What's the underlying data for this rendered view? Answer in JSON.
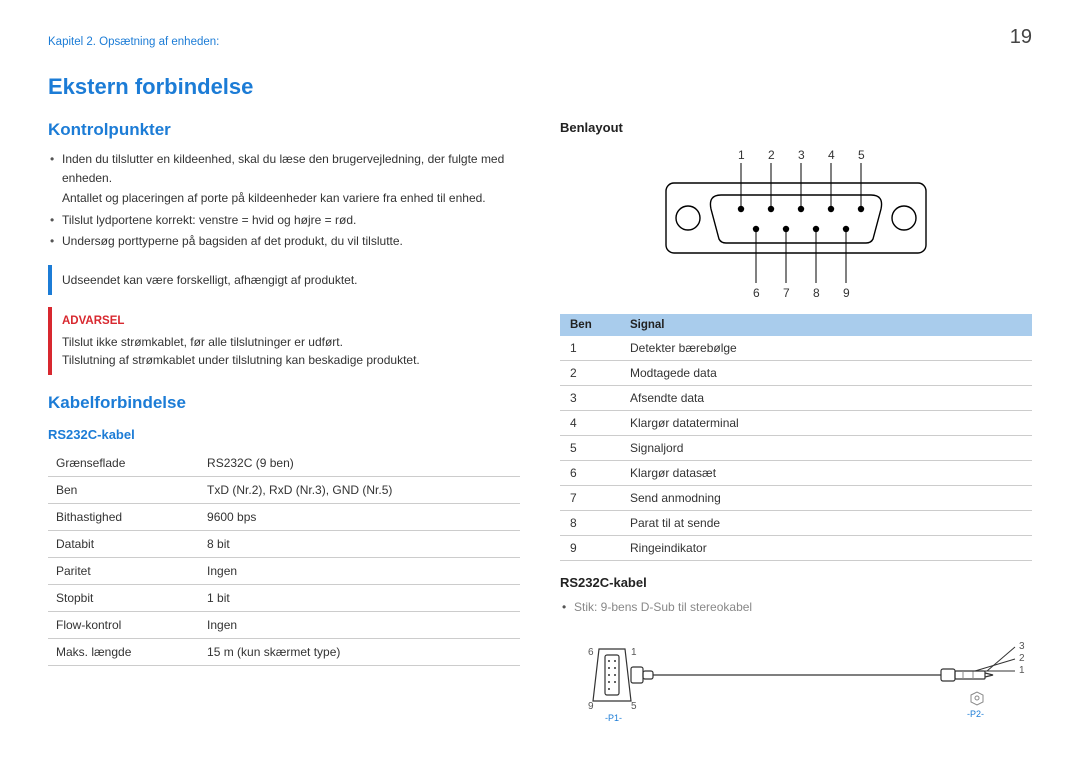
{
  "page_number": "19",
  "breadcrumb": "Kapitel 2. Opsætning af enheden:",
  "section_title": "Ekstern forbindelse",
  "kontrol": {
    "heading": "Kontrolpunkter",
    "bullets": [
      {
        "text": "Inden du tilslutter en kildeenhed, skal du læse den brugervejledning, der fulgte med enheden.",
        "sub": "Antallet og placeringen af porte på kildeenheder kan variere fra enhed til enhed."
      },
      {
        "text": "Tilslut lydportene korrekt: venstre = hvid og højre = rød."
      },
      {
        "text": "Undersøg porttyperne på bagsiden af det produkt, du vil tilslutte."
      }
    ],
    "note": "Udseendet kan være forskelligt, afhængigt af produktet.",
    "warn_label": "ADVARSEL",
    "warn_line1": "Tilslut ikke strømkablet, før alle tilslutninger er udført.",
    "warn_line2": "Tilslutning af strømkablet under tilslutning kan beskadige produktet."
  },
  "kabel": {
    "heading": "Kabelforbindelse",
    "sub_heading": "RS232C-kabel",
    "spec_rows": [
      [
        "Grænseflade",
        "RS232C (9 ben)"
      ],
      [
        "Ben",
        "TxD (Nr.2), RxD (Nr.3), GND (Nr.5)"
      ],
      [
        "Bithastighed",
        "9600 bps"
      ],
      [
        "Databit",
        "8 bit"
      ],
      [
        "Paritet",
        "Ingen"
      ],
      [
        "Stopbit",
        "1 bit"
      ],
      [
        "Flow-kontrol",
        "Ingen"
      ],
      [
        "Maks. længde",
        "15 m (kun skærmet type)"
      ]
    ]
  },
  "pinlayout": {
    "heading": "Benlayout",
    "top_labels": [
      "1",
      "2",
      "3",
      "4",
      "5"
    ],
    "bottom_labels": [
      "6",
      "7",
      "8",
      "9"
    ],
    "header": [
      "Ben",
      "Signal"
    ],
    "rows": [
      [
        "1",
        "Detekter bærebølge"
      ],
      [
        "2",
        "Modtagede data"
      ],
      [
        "3",
        "Afsendte data"
      ],
      [
        "4",
        "Klargør dataterminal"
      ],
      [
        "5",
        "Signaljord"
      ],
      [
        "6",
        "Klargør datasæt"
      ],
      [
        "7",
        "Send anmodning"
      ],
      [
        "8",
        "Parat til at sende"
      ],
      [
        "9",
        "Ringeindikator"
      ]
    ]
  },
  "cable": {
    "heading": "RS232C-kabel",
    "bullet": "Stik: 9-bens D-Sub til stereokabel",
    "left_labels": {
      "six": "6",
      "one": "1",
      "nine": "9",
      "five": "5",
      "p1": "-P1-"
    },
    "right_labels": {
      "three": "3",
      "two": "2",
      "one": "1",
      "p2": "-P2-"
    }
  },
  "colors": {
    "accent": "#1c7cd6",
    "danger": "#d8282f",
    "header_bg": "#a9ccec",
    "border": "#cccccc"
  }
}
